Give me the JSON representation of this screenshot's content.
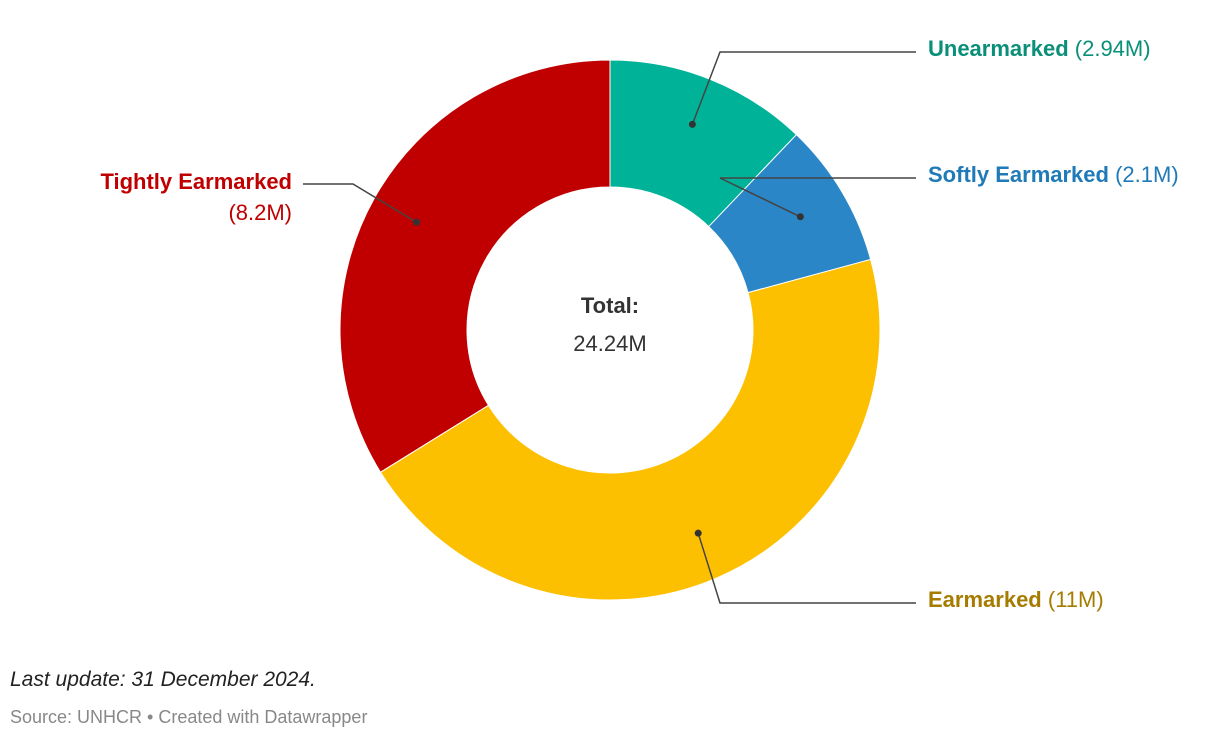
{
  "chart_data": {
    "type": "pie",
    "variant": "donut",
    "categories": [
      "Unearmarked",
      "Softly Earmarked",
      "Earmarked",
      "Tightly Earmarked"
    ],
    "values": [
      2.94,
      2.1,
      11,
      8.2
    ],
    "value_labels": [
      "(2.94M)",
      "(2.1M)",
      "(11M)",
      "(8.2M)"
    ],
    "unit": "M",
    "colors": [
      "#00b398",
      "#2a86c6",
      "#fcc000",
      "#c00000"
    ],
    "label_colors": [
      "#0a8f78",
      "#1f7ab8",
      "#a67c00",
      "#c00000"
    ],
    "center": {
      "title": "Total:",
      "value": "24.24M"
    }
  },
  "footer": {
    "note": "Last update: 31 December 2024.",
    "source": "Source: UNHCR • Created with Datawrapper"
  }
}
